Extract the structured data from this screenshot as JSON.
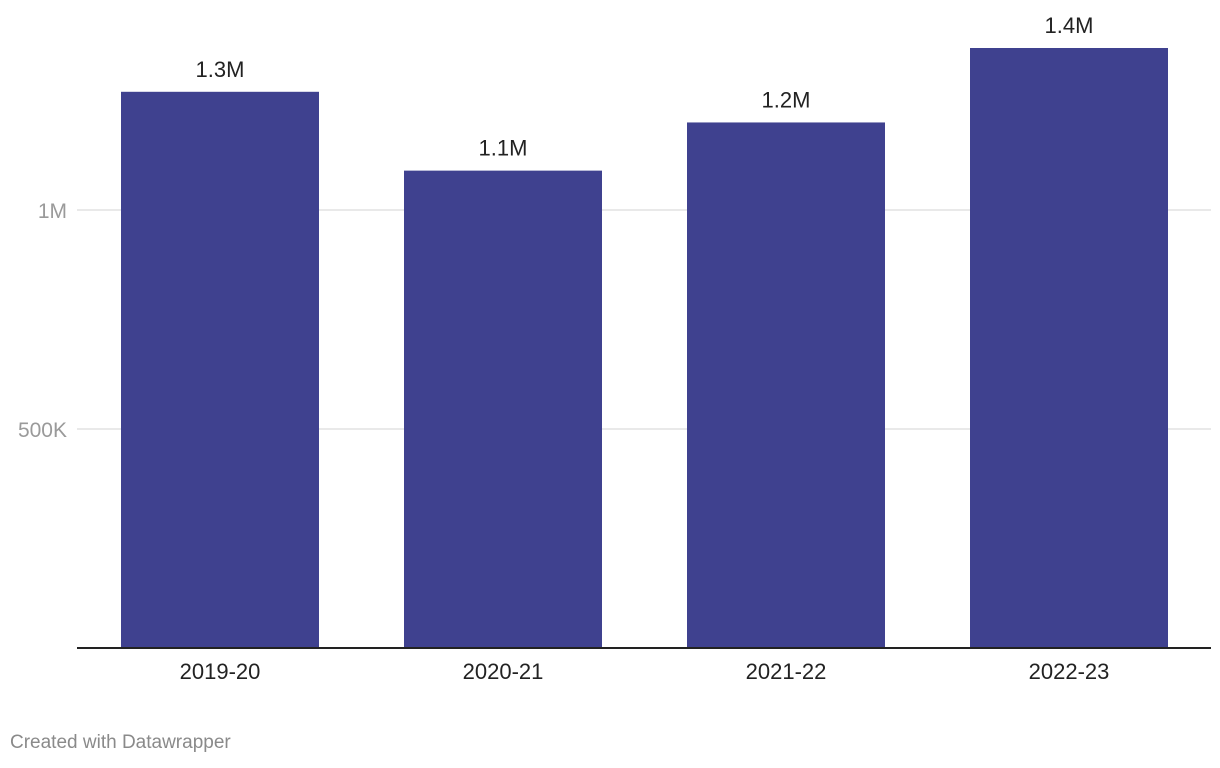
{
  "chart_data": {
    "type": "bar",
    "categories": [
      "2019-20",
      "2020-21",
      "2021-22",
      "2022-23"
    ],
    "values": [
      1270000,
      1090000,
      1200000,
      1370000
    ],
    "value_labels": [
      "1.3M",
      "1.1M",
      "1.2M",
      "1.4M"
    ],
    "title": "",
    "xlabel": "",
    "ylabel": "",
    "ylim": [
      0,
      1370000
    ],
    "y_ticks": [
      {
        "value": 500000,
        "label": "500K"
      },
      {
        "value": 1000000,
        "label": "1M"
      }
    ],
    "grid": true,
    "bar_color": "#3f418f"
  },
  "credit": "Created with Datawrapper"
}
